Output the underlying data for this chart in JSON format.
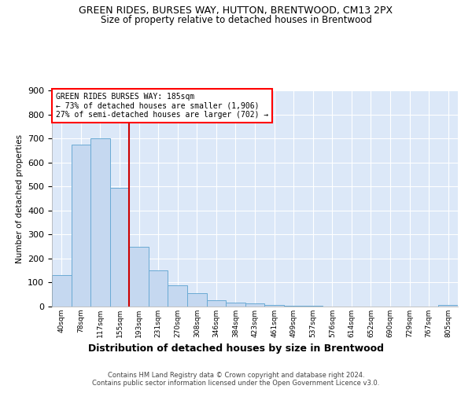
{
  "title": "GREEN RIDES, BURSES WAY, HUTTON, BRENTWOOD, CM13 2PX",
  "subtitle": "Size of property relative to detached houses in Brentwood",
  "xlabel": "Distribution of detached houses by size in Brentwood",
  "ylabel": "Number of detached properties",
  "bar_color": "#c5d8f0",
  "bar_edge_color": "#6aaad4",
  "categories": [
    "40sqm",
    "78sqm",
    "117sqm",
    "155sqm",
    "193sqm",
    "231sqm",
    "270sqm",
    "308sqm",
    "346sqm",
    "384sqm",
    "423sqm",
    "461sqm",
    "499sqm",
    "537sqm",
    "576sqm",
    "614sqm",
    "652sqm",
    "690sqm",
    "729sqm",
    "767sqm",
    "805sqm"
  ],
  "values": [
    130,
    675,
    700,
    495,
    250,
    152,
    88,
    55,
    27,
    18,
    14,
    8,
    3,
    2,
    1,
    1,
    1,
    1,
    1,
    1,
    5
  ],
  "vline_index": 4,
  "vline_color": "#cc0000",
  "annotation_lines": [
    "GREEN RIDES BURSES WAY: 185sqm",
    "← 73% of detached houses are smaller (1,906)",
    "27% of semi-detached houses are larger (702) →"
  ],
  "footer_line1": "Contains HM Land Registry data © Crown copyright and database right 2024.",
  "footer_line2": "Contains public sector information licensed under the Open Government Licence v3.0.",
  "ylim": [
    0,
    900
  ],
  "background_color": "#dce8f8",
  "grid_color": "#ffffff"
}
